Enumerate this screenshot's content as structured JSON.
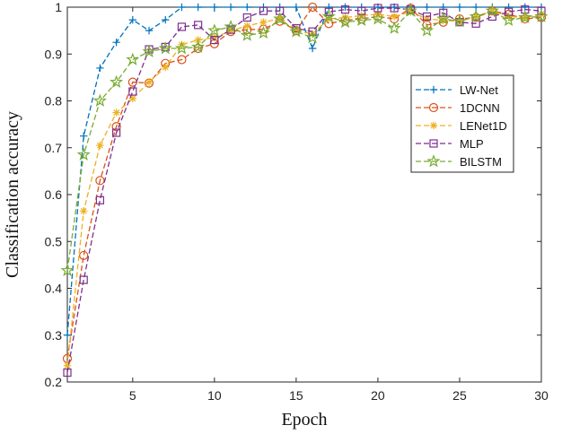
{
  "chart_data": {
    "type": "line",
    "title": "",
    "xlabel": "Epoch",
    "ylabel": "Classification accuracy",
    "xlim": [
      1,
      30
    ],
    "ylim": [
      0.2,
      1
    ],
    "xticks": [
      5,
      10,
      15,
      20,
      25,
      30
    ],
    "yticks": [
      0.2,
      0.3,
      0.4,
      0.5,
      0.6,
      0.7,
      0.8,
      0.9,
      1
    ],
    "grid": false,
    "legend_position": "right-middle",
    "x": [
      1,
      2,
      3,
      4,
      5,
      6,
      7,
      8,
      9,
      10,
      11,
      12,
      13,
      14,
      15,
      16,
      17,
      18,
      19,
      20,
      21,
      22,
      23,
      24,
      25,
      26,
      27,
      28,
      29,
      30
    ],
    "series": [
      {
        "name": "LW-Net",
        "color": "#0072BD",
        "marker": "plus",
        "values": [
          0.3,
          0.725,
          0.87,
          0.925,
          0.973,
          0.95,
          0.973,
          1.0,
          1.0,
          1.0,
          1.0,
          1.0,
          1.0,
          1.0,
          1.0,
          0.912,
          1.0,
          1.0,
          1.0,
          1.0,
          1.0,
          1.0,
          1.0,
          1.0,
          1.0,
          1.0,
          1.0,
          1.0,
          1.0,
          1.0
        ]
      },
      {
        "name": "1DCNN",
        "color": "#D95319",
        "marker": "circle",
        "values": [
          0.25,
          0.47,
          0.63,
          0.745,
          0.84,
          0.838,
          0.88,
          0.888,
          0.912,
          0.922,
          0.948,
          0.952,
          0.953,
          0.97,
          0.95,
          1.0,
          0.965,
          0.972,
          0.975,
          0.98,
          0.975,
          0.998,
          0.962,
          0.968,
          0.975,
          0.978,
          0.992,
          0.985,
          0.975,
          0.978
        ]
      },
      {
        "name": "LENet1D",
        "color": "#EDB120",
        "marker": "asterisk",
        "values": [
          0.235,
          0.565,
          0.705,
          0.775,
          0.805,
          0.84,
          0.872,
          0.92,
          0.93,
          0.935,
          0.95,
          0.96,
          0.968,
          0.975,
          0.95,
          0.943,
          0.975,
          0.978,
          0.982,
          0.985,
          0.98,
          0.99,
          0.975,
          0.972,
          0.97,
          0.98,
          0.992,
          0.98,
          0.978,
          0.985
        ]
      },
      {
        "name": "MLP",
        "color": "#7E2F8E",
        "marker": "square",
        "values": [
          0.22,
          0.418,
          0.588,
          0.732,
          0.82,
          0.91,
          0.915,
          0.958,
          0.962,
          0.93,
          0.952,
          0.978,
          0.992,
          0.992,
          0.955,
          0.948,
          0.99,
          0.995,
          0.992,
          0.998,
          0.998,
          0.995,
          0.98,
          0.988,
          0.968,
          0.965,
          0.98,
          0.99,
          0.995,
          0.992
        ]
      },
      {
        "name": "BILSTM",
        "color": "#77AC30",
        "marker": "star",
        "values": [
          0.438,
          0.685,
          0.8,
          0.84,
          0.888,
          0.905,
          0.912,
          0.912,
          0.915,
          0.95,
          0.958,
          0.94,
          0.945,
          0.975,
          0.948,
          0.935,
          0.98,
          0.968,
          0.972,
          0.975,
          0.955,
          0.992,
          0.95,
          0.975,
          0.97,
          0.98,
          0.992,
          0.972,
          0.978,
          0.98
        ]
      }
    ]
  }
}
